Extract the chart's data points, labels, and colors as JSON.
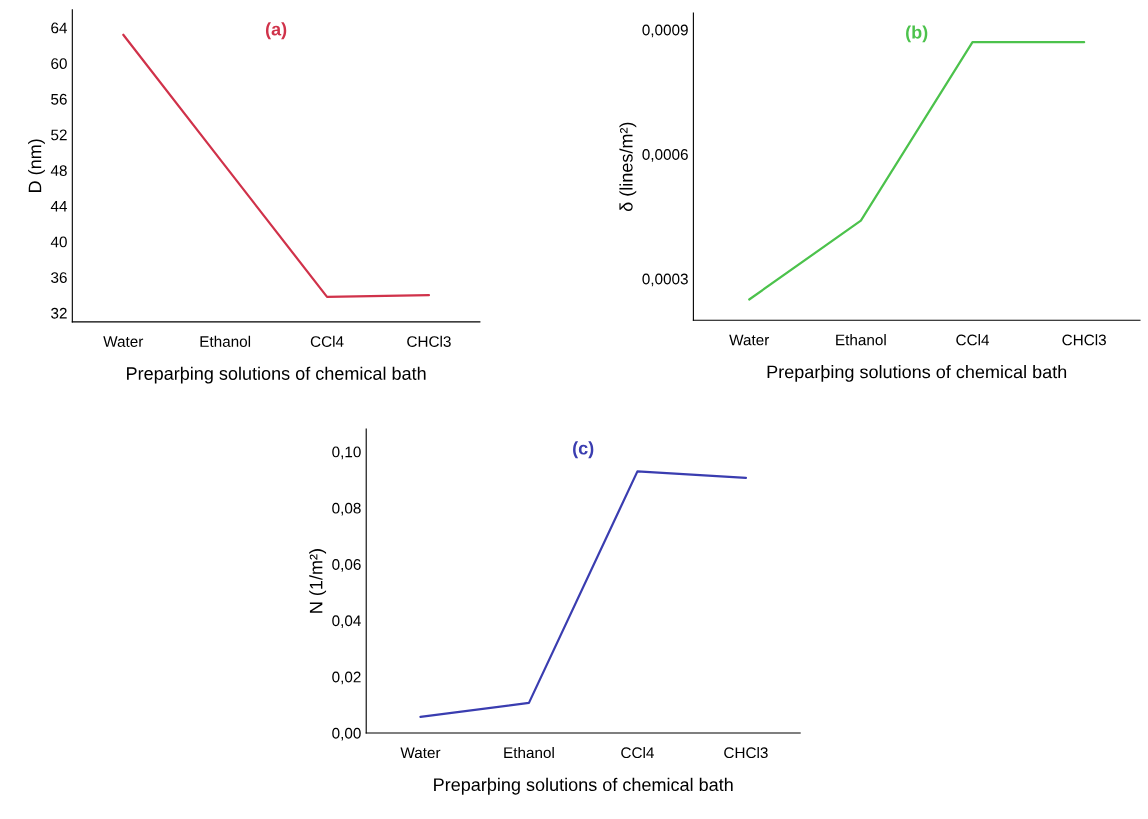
{
  "chart_data": [
    {
      "type": "line",
      "title": "(a)",
      "xlabel": "Preparþing solutions of chemical bath",
      "ylabel": "D (nm)",
      "categories": [
        "Water",
        "Ethanol",
        "CCl4",
        "CHCl3"
      ],
      "series": [
        {
          "color": "#d0324a",
          "values": [
            63.2,
            48.5,
            33.8,
            34.0
          ]
        }
      ],
      "ylim": [
        31,
        66
      ],
      "yticks": [
        32,
        36,
        40,
        44,
        48,
        52,
        56,
        60,
        64
      ]
    },
    {
      "type": "line",
      "title": "(b)",
      "xlabel": "Preparþing solutions of chemical bath",
      "ylabel": "δ (lines/m²)",
      "categories": [
        "Water",
        "Ethanol",
        "CCl4",
        "CHCl3"
      ],
      "series": [
        {
          "color": "#4cc24c",
          "values": [
            0.00025,
            0.00044,
            0.00087,
            0.00087
          ]
        }
      ],
      "ylim": [
        0.0002,
        0.00094
      ],
      "yticks": [
        {
          "value": 0.0003,
          "label": "0,0003"
        },
        {
          "value": 0.0006,
          "label": "0,0006"
        },
        {
          "value": 0.0009,
          "label": "0,0009"
        }
      ]
    },
    {
      "type": "line",
      "title": "(c)",
      "xlabel": "Preparþing solutions of chemical bath",
      "ylabel": "N (1/m²)",
      "categories": [
        "Water",
        "Ethanol",
        "CCl4",
        "CHCl3"
      ],
      "series": [
        {
          "color": "#3a3db0",
          "values": [
            0.0057,
            0.0107,
            0.093,
            0.0907
          ]
        }
      ],
      "ylim": [
        0,
        0.108
      ],
      "yticks": [
        {
          "value": 0,
          "label": "0,00"
        },
        {
          "value": 0.02,
          "label": "0,02"
        },
        {
          "value": 0.04,
          "label": "0,04"
        },
        {
          "value": 0.06,
          "label": "0,06"
        },
        {
          "value": 0.08,
          "label": "0,08"
        },
        {
          "value": 0.1,
          "label": "0,10"
        }
      ]
    }
  ]
}
